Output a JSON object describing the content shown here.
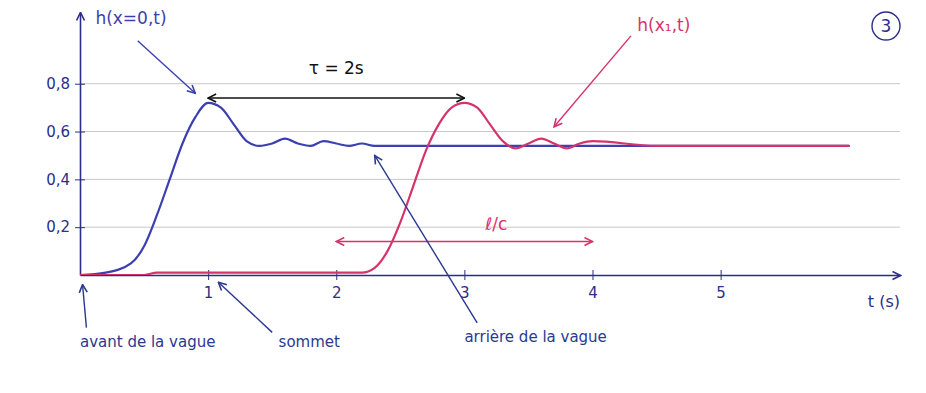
{
  "chart_data": {
    "type": "line",
    "x_label": "t (s)",
    "corner_mark": "3",
    "x": [
      0,
      0.2,
      0.4,
      0.5,
      0.6,
      0.7,
      0.8,
      0.9,
      1.0,
      1.1,
      1.2,
      1.3,
      1.4,
      1.5,
      1.6,
      1.7,
      1.8,
      1.9,
      2.0,
      2.1,
      2.2,
      2.3,
      2.4,
      2.5,
      2.6,
      2.7,
      2.8,
      2.9,
      3.0,
      3.1,
      3.2,
      3.3,
      3.4,
      3.5,
      3.6,
      3.7,
      3.8,
      3.9,
      4.0,
      4.5,
      5,
      5.5,
      6
    ],
    "xlim": [
      0,
      6.4
    ],
    "xticks": [
      1,
      2,
      3,
      4,
      5
    ],
    "ylim": [
      0,
      1.1
    ],
    "yticks": [
      {
        "value": 0.2,
        "label": "0,2"
      },
      {
        "value": 0.4,
        "label": "0,4"
      },
      {
        "value": 0.6,
        "label": "0,6"
      },
      {
        "value": 0.8,
        "label": "0,8"
      }
    ],
    "grid": true,
    "series": [
      {
        "name": "h(x=0,t)",
        "color": "#3b3fb0",
        "values": [
          0,
          0.01,
          0.05,
          0.12,
          0.25,
          0.4,
          0.55,
          0.66,
          0.72,
          0.7,
          0.63,
          0.56,
          0.54,
          0.55,
          0.57,
          0.55,
          0.54,
          0.56,
          0.55,
          0.54,
          0.55,
          0.54,
          0.54,
          0.54,
          0.54,
          0.54,
          0.54,
          0.54,
          0.54,
          0.54,
          0.54,
          0.54,
          0.54,
          0.54,
          0.54,
          0.54,
          0.54,
          0.54,
          0.54,
          0.54,
          0.54,
          0.54,
          0.54
        ],
        "label_x": 0.12,
        "label_y": 1.05,
        "arrow": [
          [
            0.45,
            0.98
          ],
          [
            0.9,
            0.76
          ]
        ]
      },
      {
        "name": "h(x₁,t)",
        "color": "#d6336c",
        "values": [
          0,
          0,
          0,
          0,
          0.01,
          0.01,
          0.01,
          0.01,
          0.01,
          0.01,
          0.01,
          0.01,
          0.01,
          0.01,
          0.01,
          0.01,
          0.01,
          0.01,
          0.01,
          0.01,
          0.01,
          0.03,
          0.1,
          0.22,
          0.37,
          0.52,
          0.63,
          0.7,
          0.72,
          0.7,
          0.63,
          0.56,
          0.53,
          0.55,
          0.57,
          0.55,
          0.53,
          0.55,
          0.56,
          0.54,
          0.54,
          0.54,
          0.54
        ],
        "label_x": 4.35,
        "label_y": 1.02,
        "arrow": [
          [
            4.3,
            1.0
          ],
          [
            3.7,
            0.62
          ]
        ]
      }
    ],
    "spans": [
      {
        "text": "τ = 2s",
        "from": 1,
        "to": 3,
        "y": 0.74,
        "text_x": 2,
        "text_y": 0.84,
        "color": "#111111"
      },
      {
        "text": "ℓ/c",
        "from": 2,
        "to": 4,
        "y": 0.14,
        "text_x": 3.25,
        "text_y": 0.19,
        "color": "#d6336c"
      }
    ],
    "annotations": [
      {
        "text": "avant de la vague",
        "x": 0,
        "y": -0.3,
        "arrow": [
          [
            0.05,
            -0.22
          ],
          [
            0.02,
            -0.04
          ]
        ],
        "color": "#2b3990"
      },
      {
        "text": "sommet",
        "x": 1.55,
        "y": -0.3,
        "arrow": [
          [
            1.5,
            -0.24
          ],
          [
            1.08,
            -0.03
          ]
        ],
        "color": "#2b3990"
      },
      {
        "text": "arrière de la vague",
        "x": 3.0,
        "y": -0.28,
        "arrow": [
          [
            3.1,
            -0.2
          ],
          [
            2.3,
            0.5
          ]
        ],
        "color": "#2b3990"
      }
    ]
  }
}
